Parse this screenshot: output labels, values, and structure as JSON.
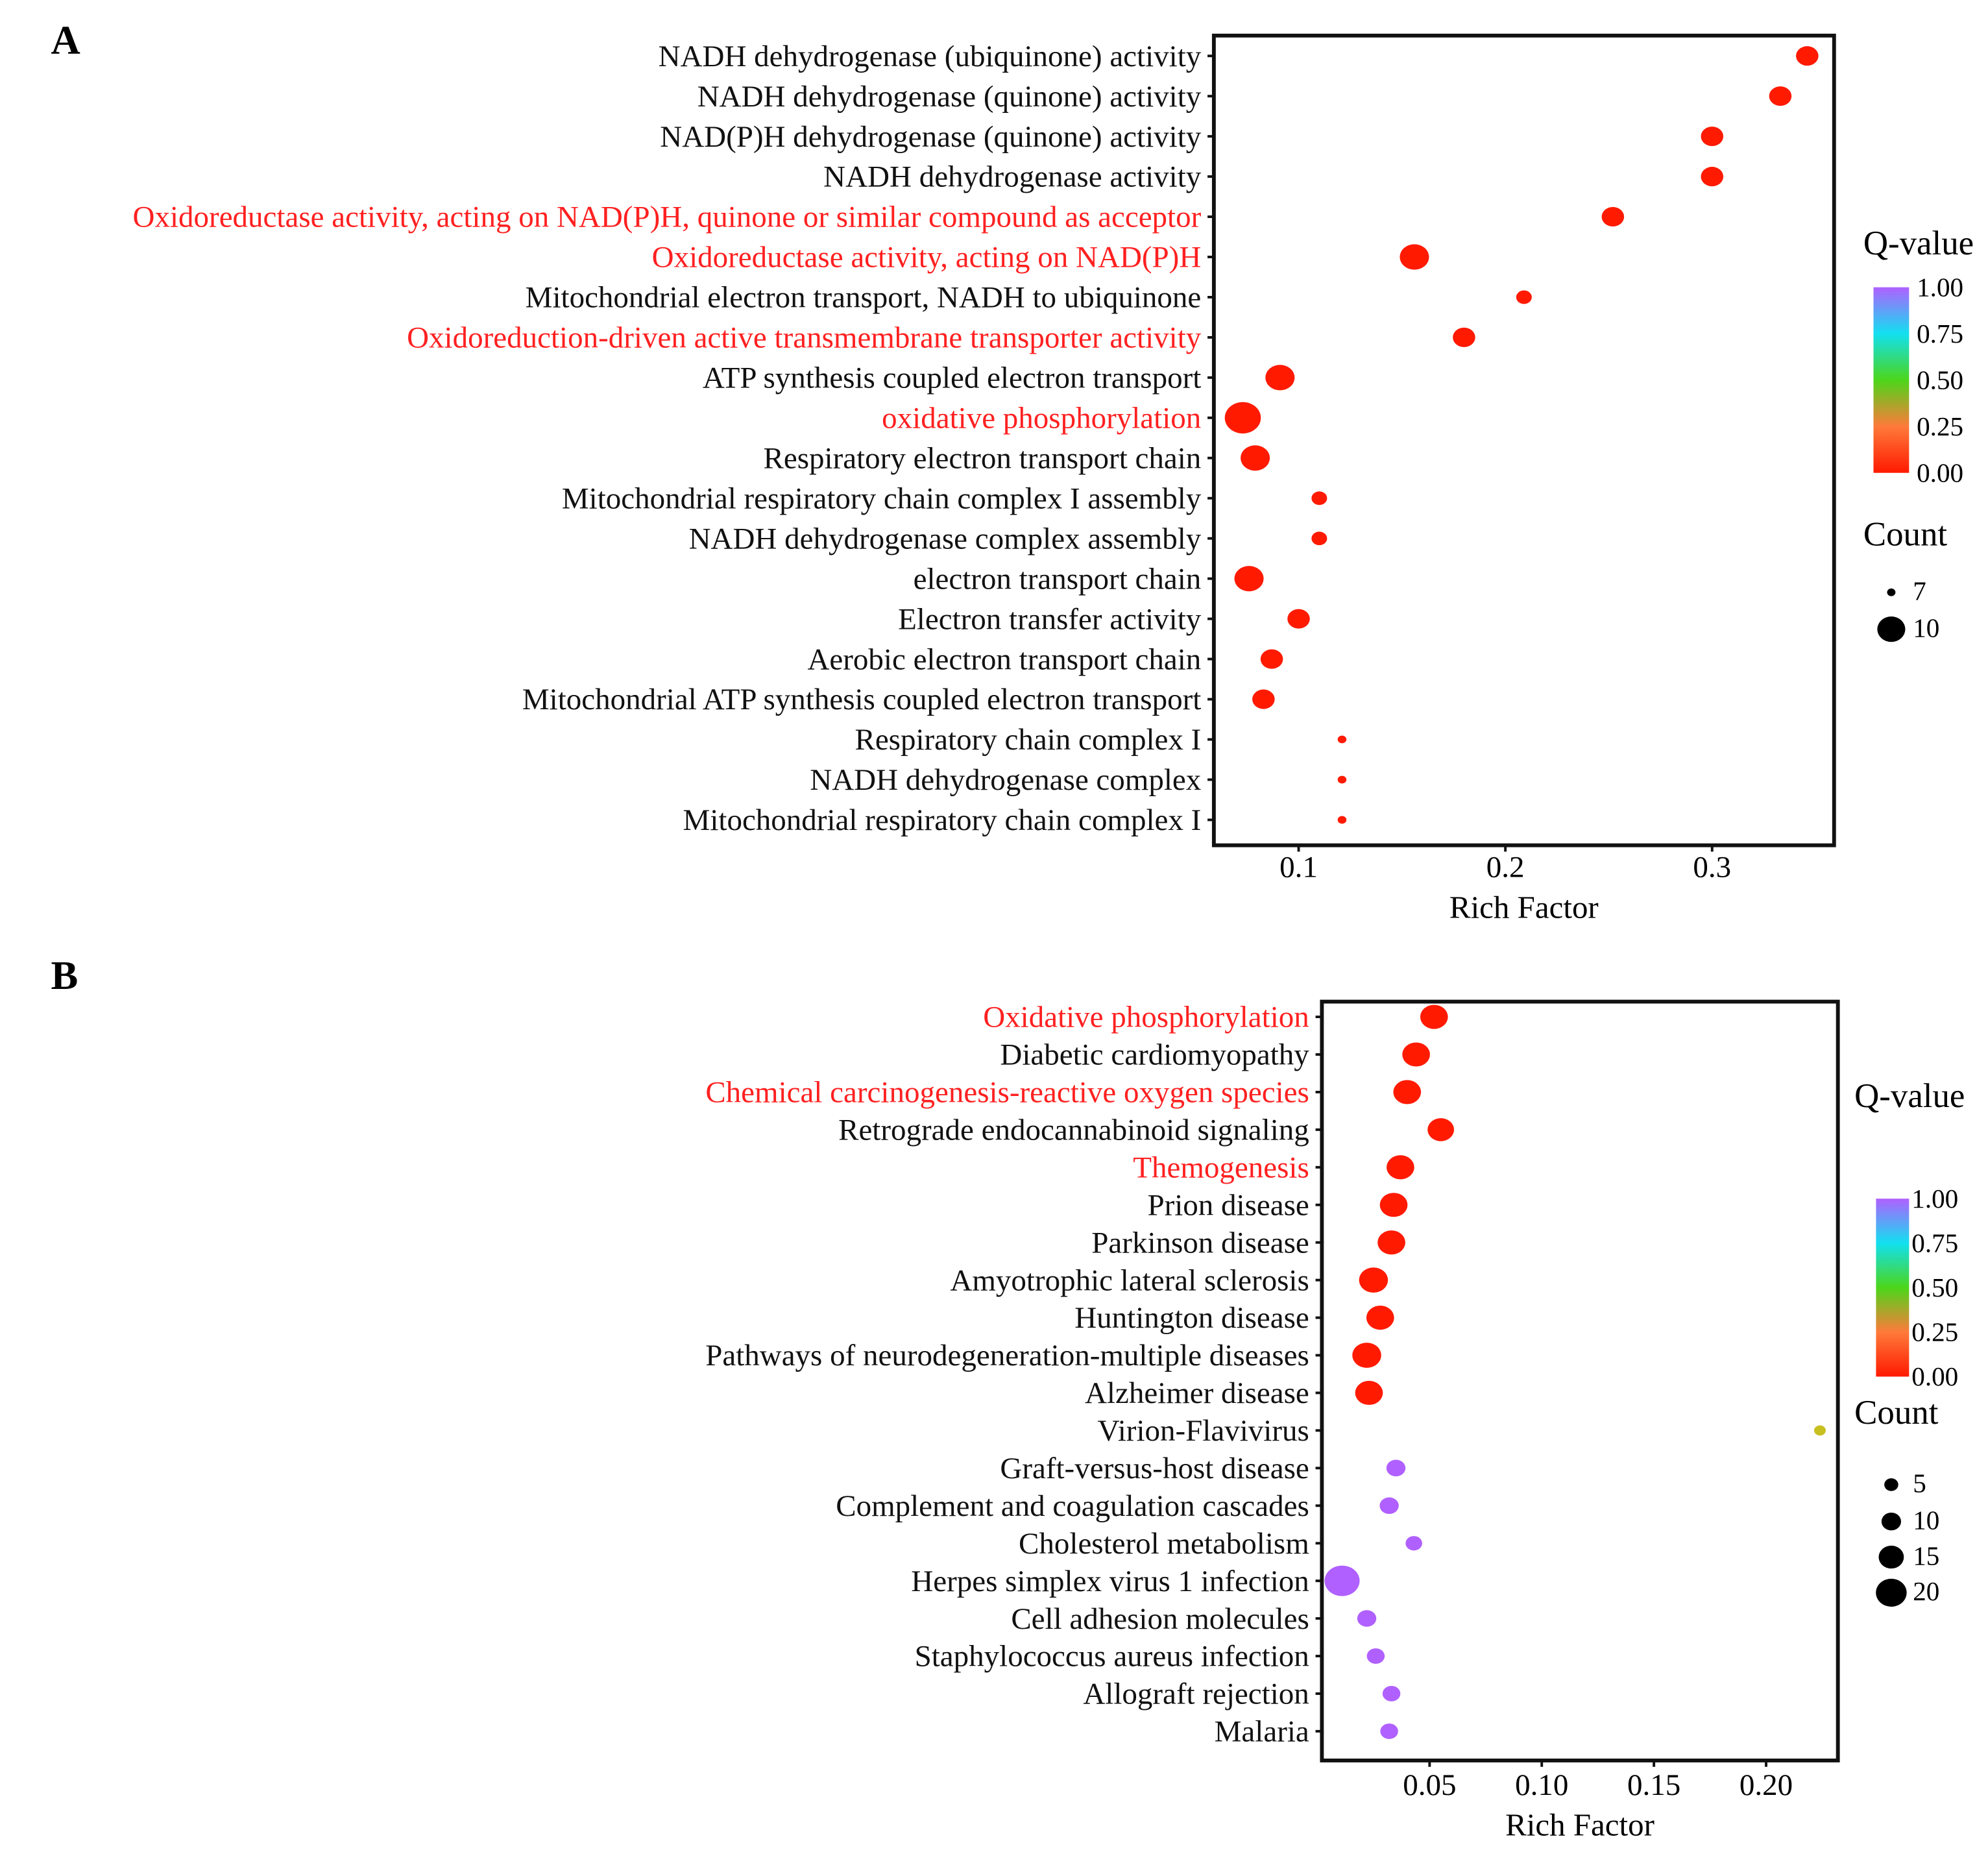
{
  "chart_data": [
    {
      "panel": "A",
      "type": "scatter",
      "xlabel": "Rich Factor",
      "xlim": [
        0.059,
        0.359
      ],
      "xticks": [
        0.1,
        0.2,
        0.3
      ],
      "xtick_labels": [
        "0.1",
        "0.2",
        "0.3"
      ],
      "colorbar_title": "Q-value",
      "colorbar_ticks": [
        "1.00",
        "0.75",
        "0.50",
        "0.25",
        "0.00"
      ],
      "size_title": "Count",
      "size_legend": [
        7,
        10
      ],
      "highlight_color": "#ff2020",
      "terms": [
        {
          "label": "NADH dehydrogenase (ubiquinone) activity",
          "rich": 0.346,
          "count": 9,
          "q": 0.0,
          "highlight": false
        },
        {
          "label": "NADH dehydrogenase (quinone) activity",
          "rich": 0.333,
          "count": 9,
          "q": 0.0,
          "highlight": false
        },
        {
          "label": "NAD(P)H dehydrogenase (quinone) activity",
          "rich": 0.3,
          "count": 9,
          "q": 0.0,
          "highlight": false
        },
        {
          "label": "NADH dehydrogenase activity",
          "rich": 0.3,
          "count": 9,
          "q": 0.0,
          "highlight": false
        },
        {
          "label": "Oxidoreductase activity, acting on NAD(P)H, quinone or similar compound as acceptor",
          "rich": 0.252,
          "count": 9,
          "q": 0.0,
          "highlight": true
        },
        {
          "label": "Oxidoreductase activity, acting on NAD(P)H",
          "rich": 0.156,
          "count": 10,
          "q": 0.0,
          "highlight": true
        },
        {
          "label": "Mitochondrial electron transport, NADH to ubiquinone",
          "rich": 0.209,
          "count": 8,
          "q": 0.0,
          "highlight": false
        },
        {
          "label": "Oxidoreduction-driven active transmembrane transporter activity",
          "rich": 0.18,
          "count": 9,
          "q": 0.0,
          "highlight": true
        },
        {
          "label": "ATP synthesis coupled electron transport",
          "rich": 0.091,
          "count": 10,
          "q": 0.0,
          "highlight": false
        },
        {
          "label": "oxidative phosphorylation",
          "rich": 0.073,
          "count": 11,
          "q": 0.0,
          "highlight": true
        },
        {
          "label": "Respiratory electron transport chain",
          "rich": 0.079,
          "count": 10,
          "q": 0.0,
          "highlight": false
        },
        {
          "label": "Mitochondrial respiratory chain complex I assembly",
          "rich": 0.11,
          "count": 8,
          "q": 0.0,
          "highlight": false
        },
        {
          "label": "NADH dehydrogenase complex assembly",
          "rich": 0.11,
          "count": 8,
          "q": 0.0,
          "highlight": false
        },
        {
          "label": "electron transport chain",
          "rich": 0.076,
          "count": 10,
          "q": 0.0,
          "highlight": false
        },
        {
          "label": "Electron transfer activity",
          "rich": 0.1,
          "count": 9,
          "q": 0.0,
          "highlight": false
        },
        {
          "label": "Aerobic electron transport chain",
          "rich": 0.087,
          "count": 9,
          "q": 0.0,
          "highlight": false
        },
        {
          "label": "Mitochondrial ATP synthesis coupled electron transport",
          "rich": 0.083,
          "count": 9,
          "q": 0.0,
          "highlight": false
        },
        {
          "label": "Respiratory chain complex I",
          "rich": 0.121,
          "count": 7,
          "q": 0.0,
          "highlight": false
        },
        {
          "label": "NADH dehydrogenase complex",
          "rich": 0.121,
          "count": 7,
          "q": 0.0,
          "highlight": false
        },
        {
          "label": "Mitochondrial respiratory chain complex I",
          "rich": 0.121,
          "count": 7,
          "q": 0.0,
          "highlight": false
        }
      ]
    },
    {
      "panel": "B",
      "type": "scatter",
      "xlabel": "Rich Factor",
      "xlim": [
        0.002,
        0.232
      ],
      "xticks": [
        0.05,
        0.1,
        0.15,
        0.2
      ],
      "xtick_labels": [
        "0.05",
        "0.10",
        "0.15",
        "0.20"
      ],
      "colorbar_title": "Q-value",
      "colorbar_ticks": [
        "1.00",
        "0.75",
        "0.50",
        "0.25",
        "0.00"
      ],
      "size_title": "Count",
      "size_legend": [
        5,
        10,
        15,
        20
      ],
      "highlight_color": "#ff2020",
      "terms": [
        {
          "label": "Oxidative phosphorylation",
          "rich": 0.052,
          "count": 14,
          "q": 0.0,
          "highlight": true
        },
        {
          "label": "Diabetic cardiomyopathy",
          "rich": 0.044,
          "count": 14,
          "q": 0.0,
          "highlight": false
        },
        {
          "label": "Chemical carcinogenesis-reactive oxygen species",
          "rich": 0.04,
          "count": 14,
          "q": 0.0,
          "highlight": true
        },
        {
          "label": "Retrograde endocannabinoid signaling",
          "rich": 0.055,
          "count": 13,
          "q": 0.0,
          "highlight": false
        },
        {
          "label": "Themogenesis",
          "rich": 0.037,
          "count": 14,
          "q": 0.0,
          "highlight": true
        },
        {
          "label": "Prion disease",
          "rich": 0.034,
          "count": 14,
          "q": 0.0,
          "highlight": false
        },
        {
          "label": "Parkinson disease",
          "rich": 0.033,
          "count": 14,
          "q": 0.0,
          "highlight": false
        },
        {
          "label": "Amyotrophic lateral sclerosis",
          "rich": 0.025,
          "count": 15,
          "q": 0.0,
          "highlight": false
        },
        {
          "label": "Huntington disease",
          "rich": 0.028,
          "count": 14,
          "q": 0.0,
          "highlight": false
        },
        {
          "label": "Pathways of neurodegeneration-multiple diseases",
          "rich": 0.022,
          "count": 15,
          "q": 0.0,
          "highlight": false
        },
        {
          "label": "Alzheimer disease",
          "rich": 0.023,
          "count": 14,
          "q": 0.0,
          "highlight": false
        },
        {
          "label": "Virion-Flavivirus",
          "rich": 0.224,
          "count": 1,
          "q": 0.38,
          "highlight": false
        },
        {
          "label": "Graft-versus-host disease",
          "rich": 0.035,
          "count": 7,
          "q": 1.0,
          "highlight": false
        },
        {
          "label": "Complement and coagulation cascades",
          "rich": 0.032,
          "count": 7,
          "q": 1.0,
          "highlight": false
        },
        {
          "label": "Cholesterol metabolism",
          "rich": 0.043,
          "count": 5,
          "q": 1.0,
          "highlight": false
        },
        {
          "label": "Herpes simplex virus 1 infection",
          "rich": 0.011,
          "count": 20,
          "q": 1.0,
          "highlight": false
        },
        {
          "label": "Cell adhesion molecules",
          "rich": 0.022,
          "count": 7,
          "q": 1.0,
          "highlight": false
        },
        {
          "label": "Staphylococcus aureus infection",
          "rich": 0.026,
          "count": 6,
          "q": 1.0,
          "highlight": false
        },
        {
          "label": "Allograft rejection",
          "rich": 0.033,
          "count": 6,
          "q": 1.0,
          "highlight": false
        },
        {
          "label": "Malaria",
          "rich": 0.032,
          "count": 6,
          "q": 1.0,
          "highlight": false
        }
      ]
    }
  ]
}
